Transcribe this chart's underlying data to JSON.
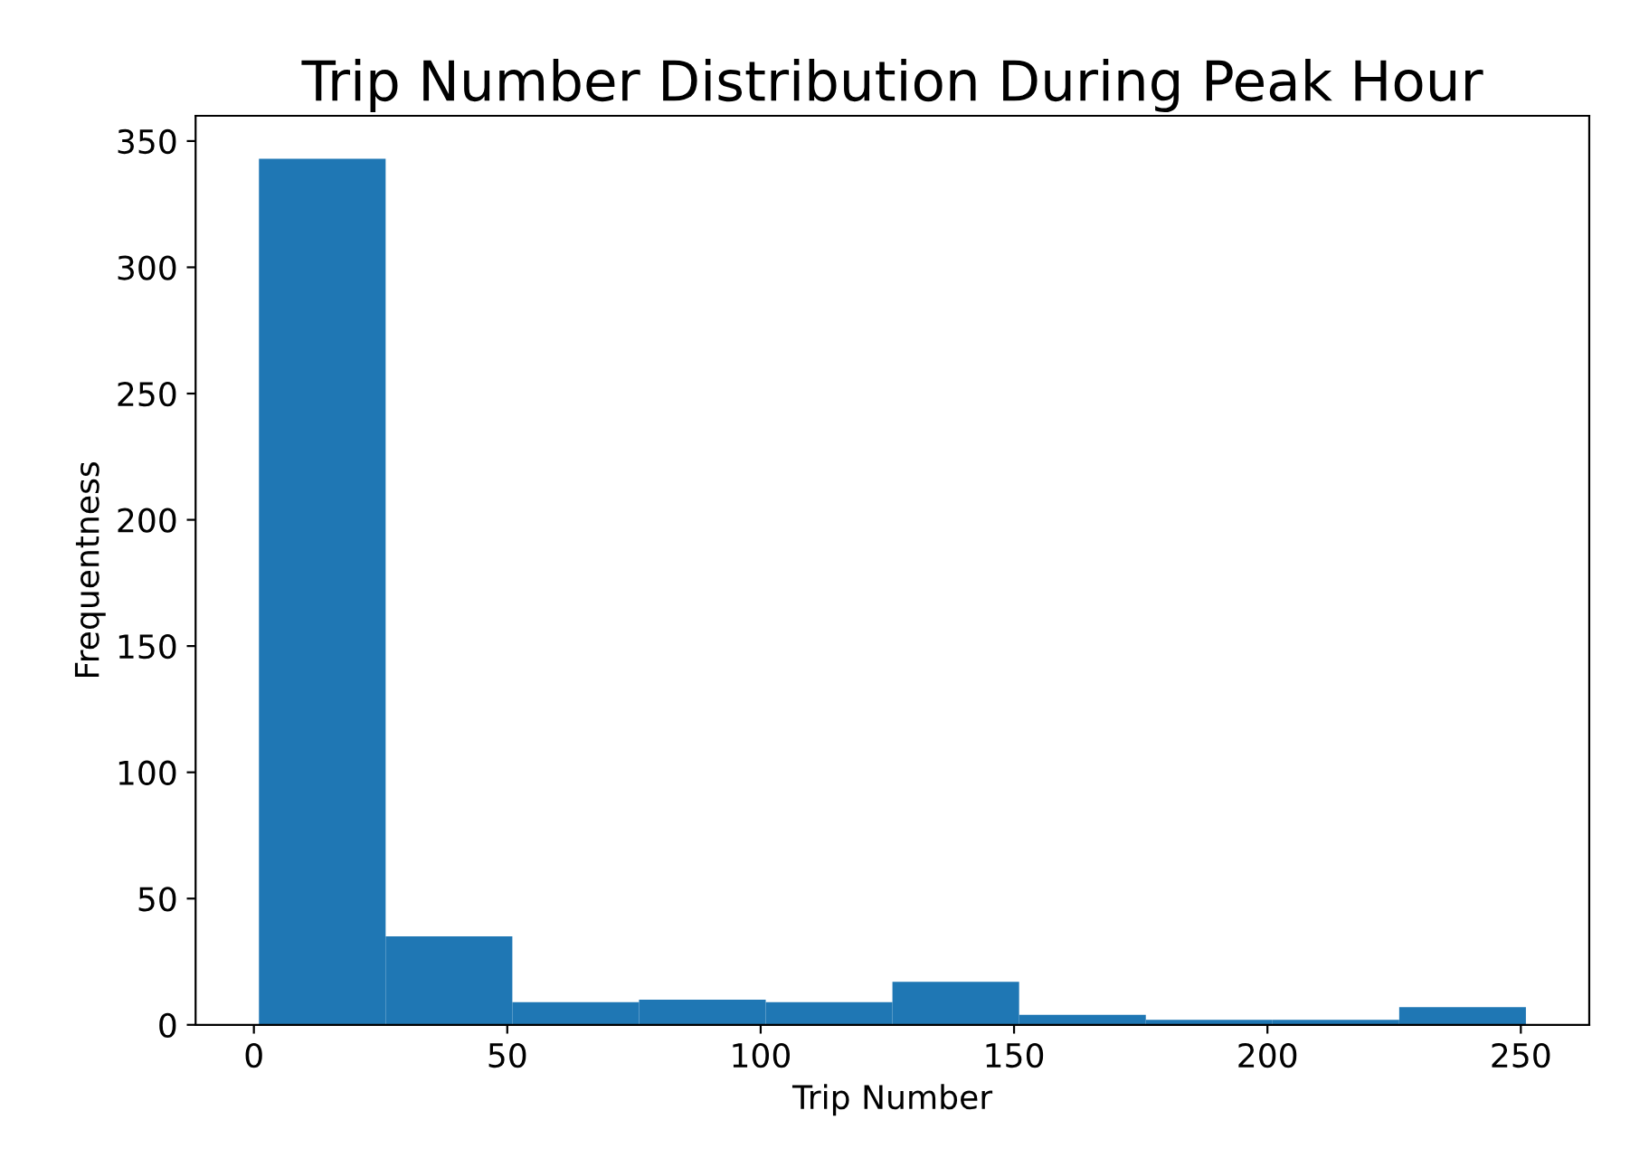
{
  "chart_data": {
    "type": "histogram",
    "title": "Trip Number Distribution During Peak Hour",
    "xlabel": "Trip Number",
    "ylabel": "Frequentness",
    "bins": [
      1,
      26,
      51,
      76,
      101,
      126,
      151,
      176,
      201,
      226,
      251
    ],
    "values": [
      343,
      35,
      9,
      10,
      9,
      17,
      4,
      2,
      2,
      7
    ],
    "color": "#1f77b4",
    "xlim": [
      -11.5,
      263.5
    ],
    "xticks": [
      0,
      50,
      100,
      150,
      200,
      250
    ],
    "ylim": [
      0,
      360
    ],
    "yticks": [
      0,
      50,
      100,
      150,
      200,
      250,
      300,
      350
    ],
    "grid": false
  }
}
